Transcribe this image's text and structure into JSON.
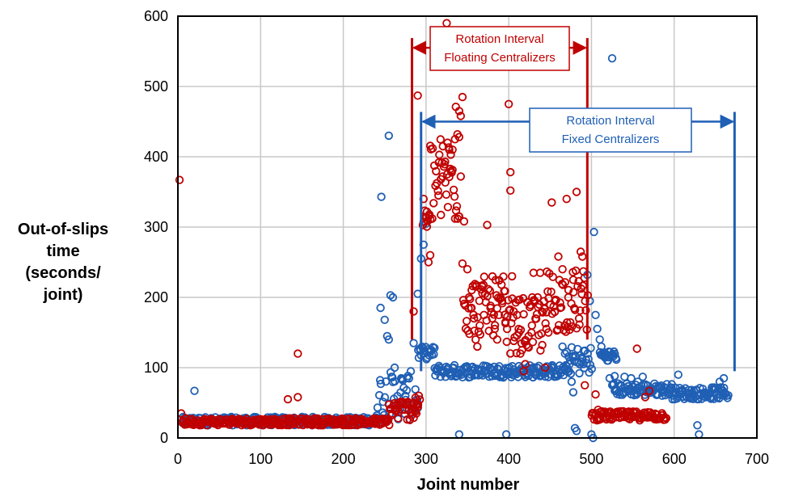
{
  "chart_data": {
    "type": "scatter",
    "title": "",
    "xlabel": "Joint number",
    "ylabel_lines": [
      "Out-of-slips",
      "time",
      "(seconds/",
      "joint)"
    ],
    "xlim": [
      0,
      700
    ],
    "ylim": [
      0,
      600
    ],
    "xticks": [
      0,
      100,
      200,
      300,
      400,
      500,
      600,
      700
    ],
    "yticks": [
      0,
      100,
      200,
      300,
      400,
      500,
      600
    ],
    "grid": true,
    "colors": {
      "red": "#c00000",
      "blue": "#1f5fb4",
      "grid": "#c8c8c8"
    },
    "series": [
      {
        "name": "Floating centralizers",
        "color": "#c00000",
        "outliers": [
          [
            2,
            367
          ],
          [
            4,
            35
          ],
          [
            145,
            120
          ],
          [
            133,
            55
          ],
          [
            145,
            58
          ],
          [
            285,
            180
          ],
          [
            290,
            487
          ],
          [
            297,
            340
          ],
          [
            301,
            322
          ],
          [
            303,
            250
          ],
          [
            305,
            260
          ],
          [
            315,
            345
          ],
          [
            318,
            368
          ],
          [
            320,
            372
          ],
          [
            323,
            393
          ],
          [
            326,
            420
          ],
          [
            328,
            410
          ],
          [
            330,
            403
          ],
          [
            332,
            410
          ],
          [
            335,
            425
          ],
          [
            338,
            432
          ],
          [
            340,
            428
          ],
          [
            325,
            590
          ],
          [
            336,
            471
          ],
          [
            340,
            465
          ],
          [
            342,
            458
          ],
          [
            344,
            485
          ],
          [
            342,
            372
          ],
          [
            344,
            248
          ],
          [
            346,
            308
          ],
          [
            350,
            240
          ],
          [
            352,
            200
          ],
          [
            355,
            185
          ],
          [
            358,
            170
          ],
          [
            360,
            140
          ],
          [
            362,
            130
          ],
          [
            365,
            160
          ],
          [
            368,
            215
          ],
          [
            370,
            175
          ],
          [
            374,
            303
          ],
          [
            378,
            185
          ],
          [
            380,
            170
          ],
          [
            383,
            155
          ],
          [
            386,
            140
          ],
          [
            388,
            175
          ],
          [
            392,
            195
          ],
          [
            396,
            165
          ],
          [
            398,
            155
          ],
          [
            400,
            475
          ],
          [
            402,
            378
          ],
          [
            402,
            352
          ],
          [
            404,
            230
          ],
          [
            406,
            180
          ],
          [
            410,
            175
          ],
          [
            412,
            155
          ],
          [
            414,
            120
          ],
          [
            418,
            95
          ],
          [
            420,
            105
          ],
          [
            424,
            145
          ],
          [
            428,
            160
          ],
          [
            430,
            235
          ],
          [
            435,
            200
          ],
          [
            438,
            235
          ],
          [
            440,
            180
          ],
          [
            444,
            100
          ],
          [
            448,
            150
          ],
          [
            452,
            335
          ],
          [
            456,
            195
          ],
          [
            460,
            258
          ],
          [
            462,
            185
          ],
          [
            465,
            240
          ],
          [
            468,
            160
          ],
          [
            470,
            340
          ],
          [
            472,
            200
          ],
          [
            478,
            225
          ],
          [
            482,
            350
          ],
          [
            485,
            170
          ],
          [
            487,
            265
          ],
          [
            489,
            258
          ],
          [
            492,
            75
          ],
          [
            505,
            62
          ],
          [
            508,
            40
          ],
          [
            540,
            30
          ],
          [
            555,
            127
          ],
          [
            565,
            58
          ],
          [
            570,
            67
          ]
        ],
        "band": [
          [
            5,
            255,
            18,
            28
          ],
          [
            255,
            290,
            25,
            55
          ],
          [
            285,
            292,
            45,
            60
          ],
          [
            296,
            305,
            295,
            325
          ],
          [
            305,
            340,
            300,
            430
          ],
          [
            345,
            395,
            145,
            230
          ],
          [
            395,
            445,
            120,
            200
          ],
          [
            445,
            495,
            150,
            240
          ],
          [
            500,
            590,
            25,
            38
          ]
        ]
      },
      {
        "name": "Fixed centralizers",
        "color": "#1f5fb4",
        "outliers": [
          [
            20,
            67
          ],
          [
            246,
            343
          ],
          [
            255,
            430
          ],
          [
            257,
            203
          ],
          [
            260,
            200
          ],
          [
            245,
            185
          ],
          [
            250,
            168
          ],
          [
            253,
            145
          ],
          [
            255,
            140
          ],
          [
            262,
            100
          ],
          [
            270,
            85
          ],
          [
            275,
            60
          ],
          [
            290,
            205
          ],
          [
            294,
            255
          ],
          [
            297,
            275
          ],
          [
            300,
            305
          ],
          [
            285,
            135
          ],
          [
            340,
            5
          ],
          [
            397,
            5
          ],
          [
            465,
            130
          ],
          [
            468,
            120
          ],
          [
            470,
            102
          ],
          [
            473,
            95
          ],
          [
            476,
            80
          ],
          [
            478,
            65
          ],
          [
            480,
            14
          ],
          [
            482,
            10
          ],
          [
            490,
            105
          ],
          [
            495,
            232
          ],
          [
            498,
            195
          ],
          [
            500,
            5
          ],
          [
            502,
            0
          ],
          [
            503,
            293
          ],
          [
            505,
            175
          ],
          [
            507,
            155
          ],
          [
            510,
            140
          ],
          [
            512,
            130
          ],
          [
            517,
            120
          ],
          [
            520,
            110
          ],
          [
            522,
            85
          ],
          [
            525,
            540
          ],
          [
            528,
            88
          ],
          [
            540,
            87
          ],
          [
            548,
            85
          ],
          [
            556,
            80
          ],
          [
            562,
            87
          ],
          [
            588,
            65
          ],
          [
            598,
            55
          ],
          [
            605,
            90
          ],
          [
            618,
            58
          ],
          [
            628,
            18
          ],
          [
            630,
            5
          ],
          [
            648,
            72
          ],
          [
            655,
            80
          ],
          [
            660,
            85
          ]
        ],
        "band": [
          [
            5,
            240,
            18,
            30
          ],
          [
            240,
            290,
            25,
            95
          ],
          [
            290,
            310,
            112,
            130
          ],
          [
            310,
            470,
            86,
            104
          ],
          [
            470,
            500,
            90,
            130
          ],
          [
            510,
            530,
            110,
            125
          ],
          [
            525,
            600,
            60,
            78
          ],
          [
            600,
            665,
            55,
            72
          ]
        ]
      }
    ],
    "annotations": [
      {
        "lines": [
          "Rotation Interval",
          "Floating Centralizers"
        ],
        "color": "#c00000",
        "x_from": 283,
        "x_to": 495,
        "y_arrow": 555
      },
      {
        "lines": [
          "Rotation Interval",
          "Fixed Centralizers"
        ],
        "color": "#1f5fb4",
        "x_from": 294,
        "x_to": 673,
        "y_arrow": 450
      }
    ]
  }
}
